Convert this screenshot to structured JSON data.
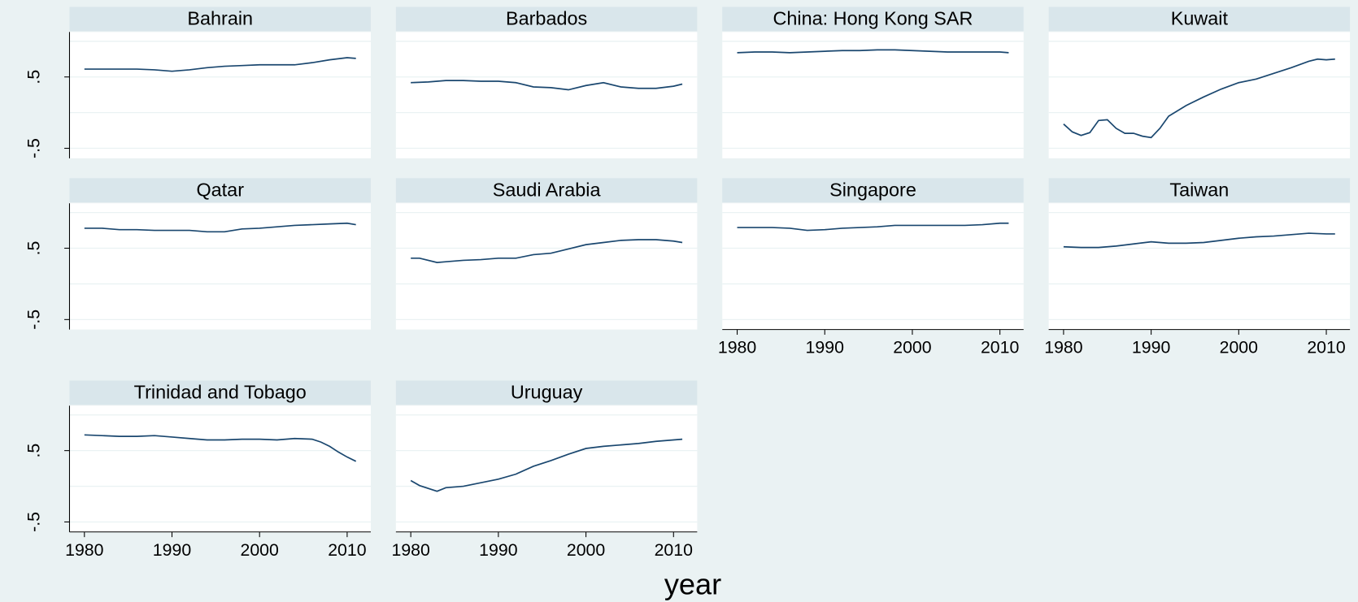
{
  "xlabel": "year",
  "chart_data": [
    {
      "type": "line",
      "title": "Bahrain",
      "color": "#1a476f",
      "x": [
        1980,
        1982,
        1984,
        1986,
        1988,
        1990,
        1992,
        1994,
        1996,
        1998,
        2000,
        2002,
        2004,
        2006,
        2008,
        2010,
        2011
      ],
      "values": [
        0.61,
        0.61,
        0.61,
        0.61,
        0.6,
        0.58,
        0.6,
        0.63,
        0.65,
        0.66,
        0.67,
        0.67,
        0.67,
        0.7,
        0.74,
        0.77,
        0.76
      ],
      "xlim": [
        1978.3,
        2012.7
      ],
      "ylim": [
        -0.64,
        1.13
      ],
      "yticks": [
        {
          "value": -0.5,
          "label": "-.5"
        },
        0,
        {
          "value": 0.5,
          "label": ".5"
        },
        1
      ]
    },
    {
      "type": "line",
      "title": "Barbados",
      "color": "#1a476f",
      "x": [
        1980,
        1982,
        1984,
        1986,
        1988,
        1990,
        1992,
        1994,
        1996,
        1998,
        2000,
        2002,
        2004,
        2006,
        2008,
        2010,
        2011
      ],
      "values": [
        0.42,
        0.43,
        0.45,
        0.45,
        0.44,
        0.44,
        0.42,
        0.36,
        0.35,
        0.32,
        0.38,
        0.42,
        0.36,
        0.34,
        0.34,
        0.37,
        0.4
      ],
      "xlim": [
        1978.3,
        2012.7
      ],
      "ylim": [
        -0.64,
        1.13
      ],
      "yticks": [
        -0.5,
        0,
        0.5,
        1
      ]
    },
    {
      "type": "line",
      "title": "China: Hong Kong SAR",
      "color": "#1a476f",
      "x": [
        1980,
        1982,
        1984,
        1986,
        1988,
        1990,
        1992,
        1994,
        1996,
        1998,
        2000,
        2002,
        2004,
        2006,
        2008,
        2010,
        2011
      ],
      "values": [
        0.84,
        0.85,
        0.85,
        0.84,
        0.85,
        0.86,
        0.87,
        0.87,
        0.88,
        0.88,
        0.87,
        0.86,
        0.85,
        0.85,
        0.85,
        0.85,
        0.84
      ],
      "xlim": [
        1978.3,
        2012.7
      ],
      "ylim": [
        -0.64,
        1.13
      ],
      "yticks": [
        -0.5,
        0,
        0.5,
        1
      ]
    },
    {
      "type": "line",
      "title": "Kuwait",
      "color": "#1a476f",
      "x": [
        1980,
        1981,
        1982,
        1983,
        1984,
        1985,
        1986,
        1987,
        1988,
        1989,
        1990,
        1991,
        1992,
        1994,
        1996,
        1998,
        2000,
        2002,
        2004,
        2006,
        2008,
        2009,
        2010,
        2011
      ],
      "values": [
        -0.16,
        -0.27,
        -0.32,
        -0.28,
        -0.11,
        -0.1,
        -0.22,
        -0.29,
        -0.29,
        -0.33,
        -0.35,
        -0.22,
        -0.05,
        0.1,
        0.22,
        0.33,
        0.42,
        0.47,
        0.55,
        0.63,
        0.72,
        0.75,
        0.74,
        0.75
      ],
      "xlim": [
        1978.3,
        2012.7
      ],
      "ylim": [
        -0.64,
        1.13
      ],
      "yticks": [
        -0.5,
        0,
        0.5,
        1
      ]
    },
    {
      "type": "line",
      "title": "Qatar",
      "color": "#1a476f",
      "x": [
        1980,
        1982,
        1984,
        1986,
        1988,
        1990,
        1992,
        1994,
        1996,
        1998,
        2000,
        2002,
        2004,
        2006,
        2008,
        2010,
        2011
      ],
      "values": [
        0.78,
        0.78,
        0.76,
        0.76,
        0.75,
        0.75,
        0.75,
        0.73,
        0.73,
        0.77,
        0.78,
        0.8,
        0.82,
        0.83,
        0.84,
        0.85,
        0.83
      ],
      "xlim": [
        1978.3,
        2012.7
      ],
      "ylim": [
        -0.64,
        1.13
      ],
      "yticks": [
        {
          "value": -0.5,
          "label": "-.5"
        },
        0,
        {
          "value": 0.5,
          "label": ".5"
        },
        1
      ]
    },
    {
      "type": "line",
      "title": "Saudi Arabia",
      "color": "#1a476f",
      "x": [
        1980,
        1981,
        1983,
        1984,
        1986,
        1988,
        1990,
        1992,
        1994,
        1996,
        1998,
        2000,
        2002,
        2004,
        2006,
        2008,
        2010,
        2011
      ],
      "values": [
        0.36,
        0.36,
        0.3,
        0.31,
        0.33,
        0.34,
        0.36,
        0.36,
        0.41,
        0.43,
        0.49,
        0.55,
        0.58,
        0.61,
        0.62,
        0.62,
        0.6,
        0.58
      ],
      "xlim": [
        1978.3,
        2012.7
      ],
      "ylim": [
        -0.64,
        1.13
      ],
      "yticks": [
        -0.5,
        0,
        0.5,
        1
      ]
    },
    {
      "type": "line",
      "title": "Singapore",
      "color": "#1a476f",
      "x": [
        1980,
        1982,
        1984,
        1986,
        1988,
        1990,
        1992,
        1994,
        1996,
        1998,
        2000,
        2002,
        2004,
        2006,
        2008,
        2010,
        2011
      ],
      "values": [
        0.79,
        0.79,
        0.79,
        0.78,
        0.75,
        0.76,
        0.78,
        0.79,
        0.8,
        0.82,
        0.82,
        0.82,
        0.82,
        0.82,
        0.83,
        0.85,
        0.85
      ],
      "xlim": [
        1978.3,
        2012.7
      ],
      "ylim": [
        -0.64,
        1.13
      ],
      "yticks": [
        -0.5,
        0,
        0.5,
        1
      ],
      "xticks": [
        1980,
        1990,
        2000,
        2010
      ]
    },
    {
      "type": "line",
      "title": "Taiwan",
      "color": "#1a476f",
      "x": [
        1980,
        1982,
        1984,
        1986,
        1988,
        1990,
        1992,
        1994,
        1996,
        1998,
        2000,
        2002,
        2004,
        2006,
        2008,
        2010,
        2011
      ],
      "values": [
        0.52,
        0.51,
        0.51,
        0.53,
        0.56,
        0.59,
        0.57,
        0.57,
        0.58,
        0.61,
        0.64,
        0.66,
        0.67,
        0.69,
        0.71,
        0.7,
        0.7
      ],
      "xlim": [
        1978.3,
        2012.7
      ],
      "ylim": [
        -0.64,
        1.13
      ],
      "yticks": [
        -0.5,
        0,
        0.5,
        1
      ],
      "xticks": [
        1980,
        1990,
        2000,
        2010
      ]
    },
    {
      "type": "line",
      "title": "Trinidad and Tobago",
      "color": "#1a476f",
      "x": [
        1980,
        1982,
        1984,
        1986,
        1988,
        1990,
        1992,
        1994,
        1996,
        1998,
        2000,
        2002,
        2004,
        2006,
        2007,
        2008,
        2009,
        2010,
        2011
      ],
      "values": [
        0.72,
        0.71,
        0.7,
        0.7,
        0.71,
        0.69,
        0.67,
        0.65,
        0.65,
        0.66,
        0.66,
        0.65,
        0.67,
        0.66,
        0.62,
        0.56,
        0.48,
        0.41,
        0.35
      ],
      "xlim": [
        1978.3,
        2012.7
      ],
      "ylim": [
        -0.64,
        1.13
      ],
      "yticks": [
        {
          "value": -0.5,
          "label": "-.5"
        },
        0,
        {
          "value": 0.5,
          "label": ".5"
        },
        1
      ],
      "xticks": [
        1980,
        1990,
        2000,
        2010
      ]
    },
    {
      "type": "line",
      "title": "Uruguay",
      "color": "#1a476f",
      "x": [
        1980,
        1981,
        1983,
        1984,
        1986,
        1988,
        1990,
        1992,
        1994,
        1996,
        1998,
        2000,
        2002,
        2004,
        2006,
        2008,
        2010,
        2011
      ],
      "values": [
        0.08,
        0.01,
        -0.07,
        -0.02,
        0,
        0.05,
        0.1,
        0.17,
        0.28,
        0.36,
        0.45,
        0.53,
        0.56,
        0.58,
        0.6,
        0.63,
        0.65,
        0.66
      ],
      "xlim": [
        1978.3,
        2012.7
      ],
      "ylim": [
        -0.64,
        1.13
      ],
      "yticks": [
        -0.5,
        0,
        0.5,
        1
      ],
      "xticks": [
        1980,
        1990,
        2000,
        2010
      ]
    }
  ]
}
